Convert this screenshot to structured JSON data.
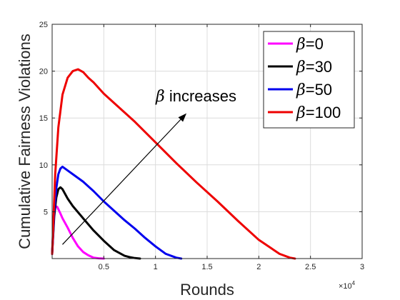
{
  "chart_data": {
    "type": "line",
    "xlabel": "Rounds",
    "ylabel": "Cumulative Fairness Violations",
    "xlim": [
      0,
      3
    ],
    "ylim": [
      0,
      25
    ],
    "x_multiplier": "×10",
    "x_multiplier_exp": "4",
    "x_ticks": [
      0.5,
      1,
      1.5,
      2,
      2.5,
      3
    ],
    "x_tick_labels": [
      "0.5",
      "1",
      "1.5",
      "2",
      "2.5",
      "3"
    ],
    "y_ticks": [
      5,
      10,
      15,
      20,
      25
    ],
    "y_tick_labels": [
      "5",
      "10",
      "15",
      "20",
      "25"
    ],
    "grid": true,
    "legend_position": "top-right",
    "series": [
      {
        "name": "β=0",
        "symbol": "β",
        "label_suffix": "=0",
        "color": "#ff00ff",
        "x": [
          0,
          0.01,
          0.02,
          0.03,
          0.05,
          0.08,
          0.1,
          0.15,
          0.2,
          0.25,
          0.3,
          0.35,
          0.4,
          0.45,
          0.5
        ],
        "y": [
          0.5,
          3,
          5,
          5.6,
          5.5,
          4.8,
          4.3,
          3.3,
          2.2,
          1.3,
          0.7,
          0.35,
          0.1,
          0.03,
          0
        ]
      },
      {
        "name": "β=30",
        "symbol": "β",
        "label_suffix": "=30",
        "color": "#000000",
        "x": [
          0,
          0.02,
          0.04,
          0.06,
          0.08,
          0.1,
          0.15,
          0.2,
          0.3,
          0.4,
          0.5,
          0.6,
          0.7,
          0.75,
          0.8,
          0.85
        ],
        "y": [
          0.5,
          4.5,
          6.5,
          7.4,
          7.6,
          7.4,
          6.4,
          5.6,
          4.3,
          3.0,
          1.9,
          0.9,
          0.3,
          0.15,
          0.05,
          0
        ]
      },
      {
        "name": "β=50",
        "symbol": "β",
        "label_suffix": "=50",
        "color": "#0000ee",
        "x": [
          0,
          0.02,
          0.04,
          0.06,
          0.08,
          0.1,
          0.15,
          0.2,
          0.3,
          0.4,
          0.5,
          0.6,
          0.7,
          0.8,
          0.9,
          1.0,
          1.1,
          1.2,
          1.25
        ],
        "y": [
          0.5,
          5,
          7.5,
          9,
          9.6,
          9.8,
          9.4,
          9.0,
          8.2,
          7.2,
          6.1,
          5.1,
          4.1,
          3.2,
          2.2,
          1.3,
          0.5,
          0.1,
          0
        ]
      },
      {
        "name": "β=100",
        "symbol": "β",
        "label_suffix": "=100",
        "color": "#ee0000",
        "x": [
          0,
          0.03,
          0.06,
          0.1,
          0.15,
          0.2,
          0.25,
          0.3,
          0.35,
          0.4,
          0.5,
          0.6,
          0.8,
          1.0,
          1.2,
          1.4,
          1.6,
          1.8,
          2.0,
          2.2,
          2.3,
          2.35
        ],
        "y": [
          0.5,
          9,
          14,
          17.5,
          19.3,
          20.0,
          20.2,
          19.9,
          19.3,
          18.8,
          17.6,
          16.6,
          14.6,
          12.4,
          10.2,
          8.1,
          6.1,
          4.0,
          2.0,
          0.5,
          0.1,
          0
        ]
      }
    ],
    "annotation": {
      "symbol": "β",
      "text": " increases",
      "arrow_from": [
        0.1,
        1.5
      ],
      "arrow_to": [
        1.3,
        15.5
      ]
    }
  }
}
